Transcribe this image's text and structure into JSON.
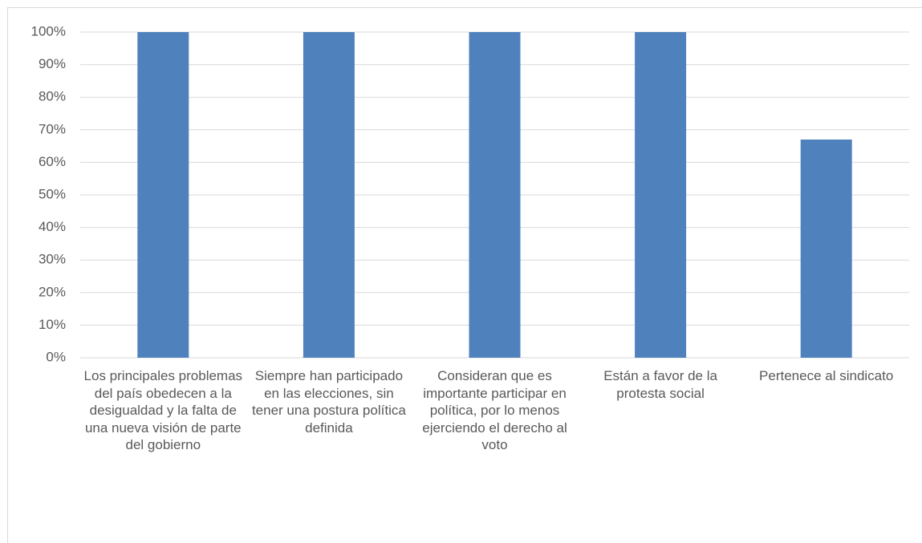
{
  "chart_data": {
    "type": "bar",
    "categories": [
      "Los principales problemas del país obedecen a la desigualdad y la falta de una nueva visión de parte del gobierno",
      "Siempre han participado en las elecciones, sin tener una postura política definida",
      "Consideran que es importante participar en política, por lo menos ejerciendo el derecho al voto",
      "Están a favor de la protesta social",
      "Pertenece al sindicato"
    ],
    "values": [
      100,
      100,
      100,
      100,
      67
    ],
    "color": "#4f81bd",
    "ylim": [
      0,
      100
    ],
    "yticks": [
      {
        "value": 0,
        "label": "0%"
      },
      {
        "value": 10,
        "label": "10%"
      },
      {
        "value": 20,
        "label": "20%"
      },
      {
        "value": 30,
        "label": "30%"
      },
      {
        "value": 40,
        "label": "40%"
      },
      {
        "value": 50,
        "label": "50%"
      },
      {
        "value": 60,
        "label": "60%"
      },
      {
        "value": 70,
        "label": "70%"
      },
      {
        "value": 80,
        "label": "80%"
      },
      {
        "value": 90,
        "label": "90%"
      },
      {
        "value": 100,
        "label": "100%"
      }
    ],
    "grid": true
  }
}
